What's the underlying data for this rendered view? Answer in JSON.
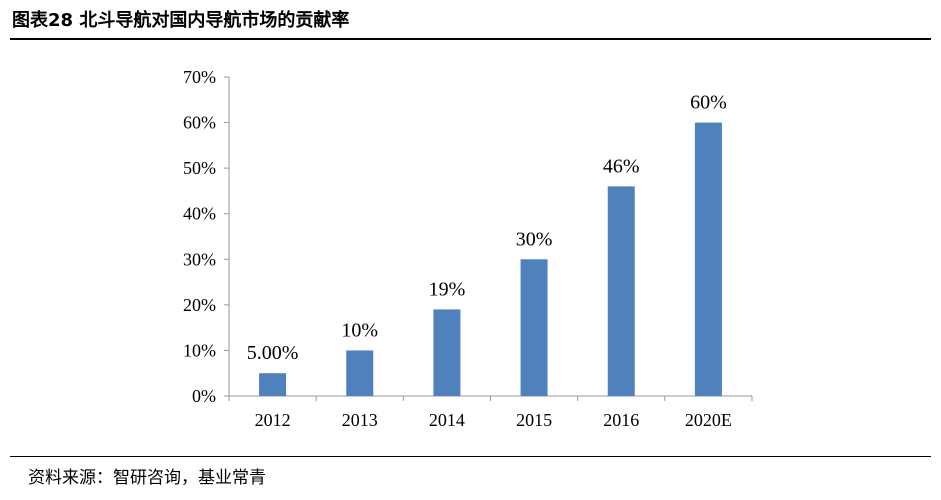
{
  "figure": {
    "title": "图表28  北斗导航对国内导航市场的贡献率",
    "source": "资料来源：智研咨询，基业常青"
  },
  "chart_data": {
    "type": "bar",
    "title": "",
    "xlabel": "",
    "ylabel": "",
    "categories": [
      "2012",
      "2013",
      "2014",
      "2015",
      "2016",
      "2020E"
    ],
    "values": [
      5,
      10,
      19,
      30,
      46,
      60
    ],
    "data_labels": [
      "5.00%",
      "10%",
      "19%",
      "30%",
      "46%",
      "60%"
    ],
    "ylim": [
      0,
      70
    ],
    "yticks": [
      0,
      10,
      20,
      30,
      40,
      50,
      60,
      70
    ],
    "ytick_labels": [
      "0%",
      "10%",
      "20%",
      "30%",
      "40%",
      "50%",
      "60%",
      "70%"
    ],
    "bar_color": "#4f81bd",
    "grid": false,
    "legend": "none"
  }
}
